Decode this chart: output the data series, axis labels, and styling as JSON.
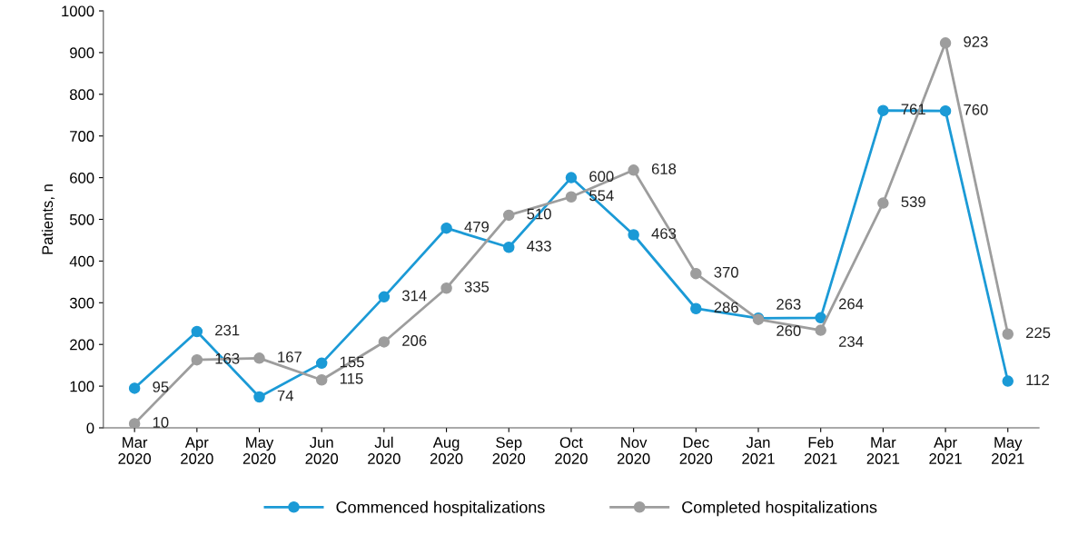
{
  "chart_data": {
    "type": "line",
    "ylabel": "Patients, n",
    "categories": [
      "Mar\n2020",
      "Apr\n2020",
      "May\n2020",
      "Jun\n2020",
      "Jul\n2020",
      "Aug\n2020",
      "Sep\n2020",
      "Oct\n2020",
      "Nov\n2020",
      "Dec\n2020",
      "Jan\n2021",
      "Feb\n2021",
      "Mar\n2021",
      "Apr\n2021",
      "May\n2021"
    ],
    "series": [
      {
        "name": "Commenced hospitalizations",
        "color": "#1b9ad6",
        "values": [
          95,
          231,
          74,
          155,
          314,
          479,
          433,
          600,
          463,
          286,
          263,
          264,
          761,
          760,
          112
        ]
      },
      {
        "name": "Completed hospitalizations",
        "color": "#9d9d9d",
        "values": [
          10,
          163,
          167,
          115,
          206,
          335,
          510,
          554,
          618,
          370,
          260,
          234,
          539,
          923,
          225
        ]
      }
    ],
    "ylim": [
      0,
      1000
    ],
    "yticks": [
      0,
      100,
      200,
      300,
      400,
      500,
      600,
      700,
      800,
      900,
      1000
    ],
    "data_labels": true,
    "marker": "circle",
    "line_style": "solid",
    "grid": false,
    "legend": "bottom"
  }
}
